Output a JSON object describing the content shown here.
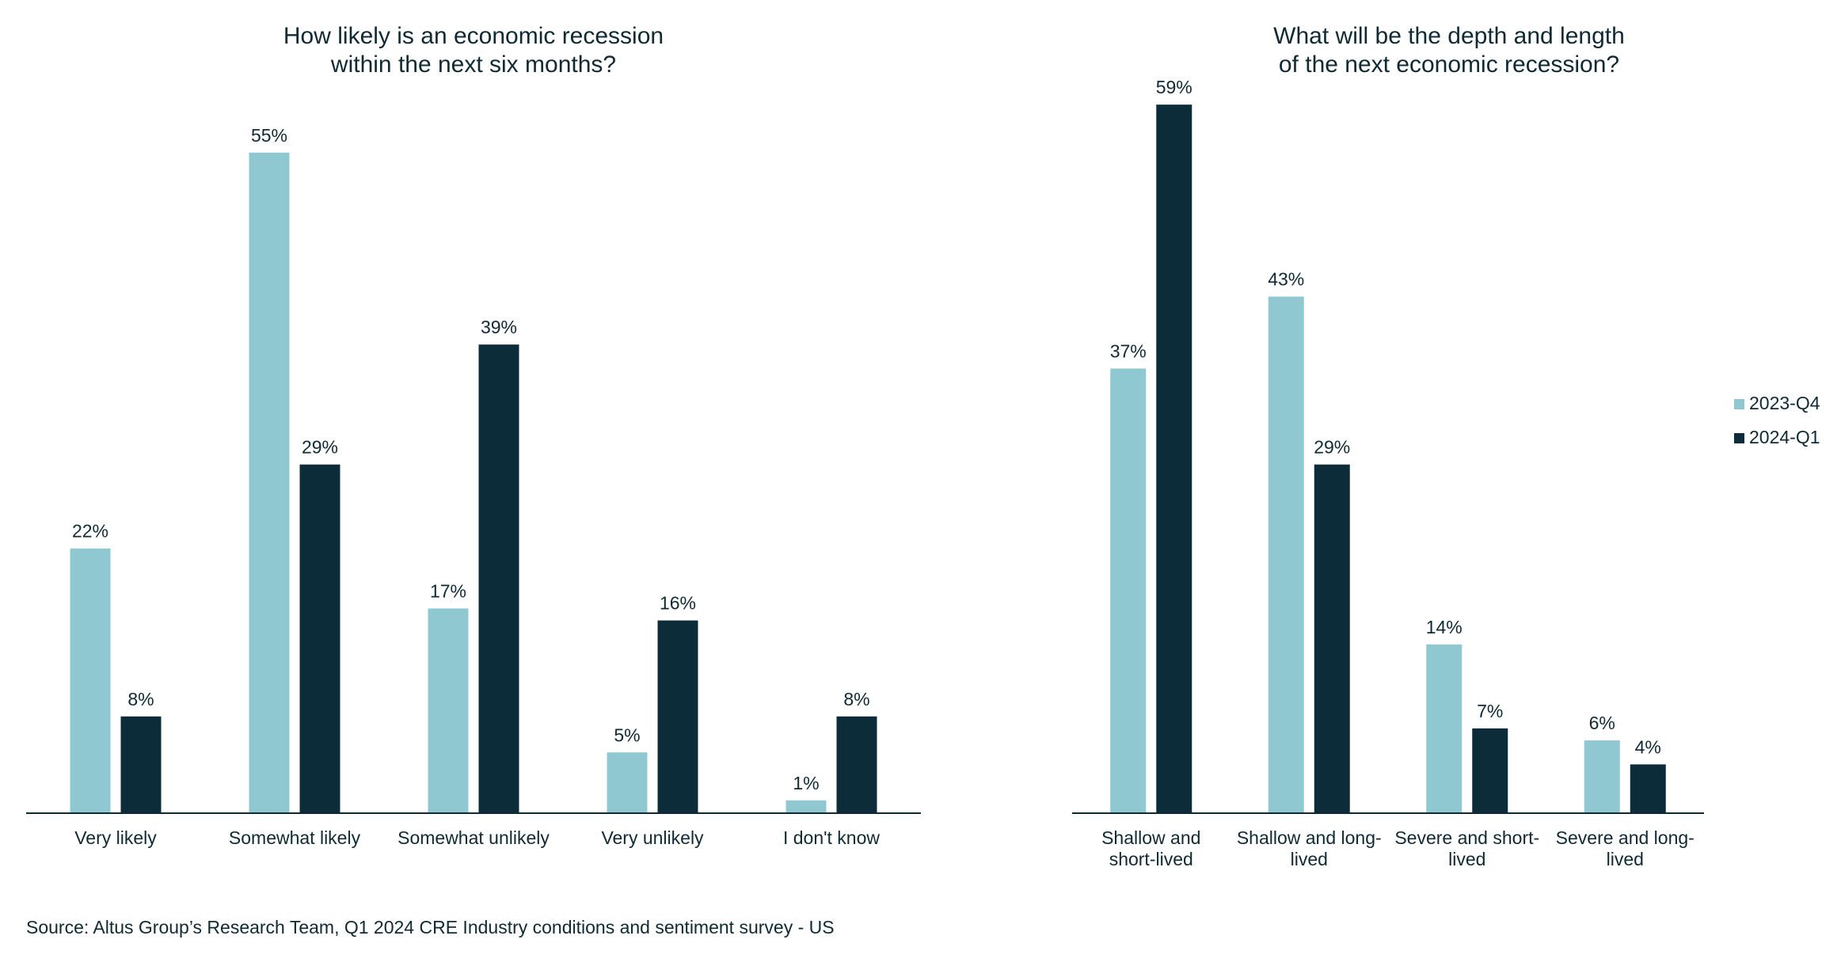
{
  "colors": {
    "2023-Q4": "#8fc8d0",
    "2024-Q1": "#0b2c38",
    "text": "#0f2a33"
  },
  "legend": {
    "placement": "right",
    "items": [
      "2023-Q4",
      "2024-Q1"
    ]
  },
  "source": "Source: Altus Group’s Research Team, Q1 2024 CRE Industry conditions and sentiment survey - US",
  "chart_data": [
    {
      "type": "bar",
      "title": [
        "How likely is an economic recession",
        "within the next six months?"
      ],
      "categories": [
        [
          "Very likely"
        ],
        [
          "Somewhat likely"
        ],
        [
          "Somewhat unlikely"
        ],
        [
          "Very unlikely"
        ],
        [
          "I don't know"
        ]
      ],
      "series": [
        {
          "name": "2023-Q4",
          "values": [
            22,
            55,
            17,
            5,
            1
          ]
        },
        {
          "name": "2024-Q1",
          "values": [
            8,
            29,
            39,
            16,
            8
          ]
        }
      ],
      "unit": "%",
      "ylim": [
        0,
        60
      ],
      "grid": false
    },
    {
      "type": "bar",
      "title": [
        "What will be the depth and length",
        "of the next economic recession?"
      ],
      "categories": [
        [
          "Shallow and",
          "short-lived"
        ],
        [
          "Shallow and long-",
          "lived"
        ],
        [
          "Severe and short-",
          "lived"
        ],
        [
          "Severe and long-",
          "lived"
        ]
      ],
      "series": [
        {
          "name": "2023-Q4",
          "values": [
            37,
            43,
            14,
            6
          ]
        },
        {
          "name": "2024-Q1",
          "values": [
            59,
            29,
            7,
            4
          ]
        }
      ],
      "unit": "%",
      "ylim": [
        0,
        60
      ],
      "grid": false
    }
  ]
}
